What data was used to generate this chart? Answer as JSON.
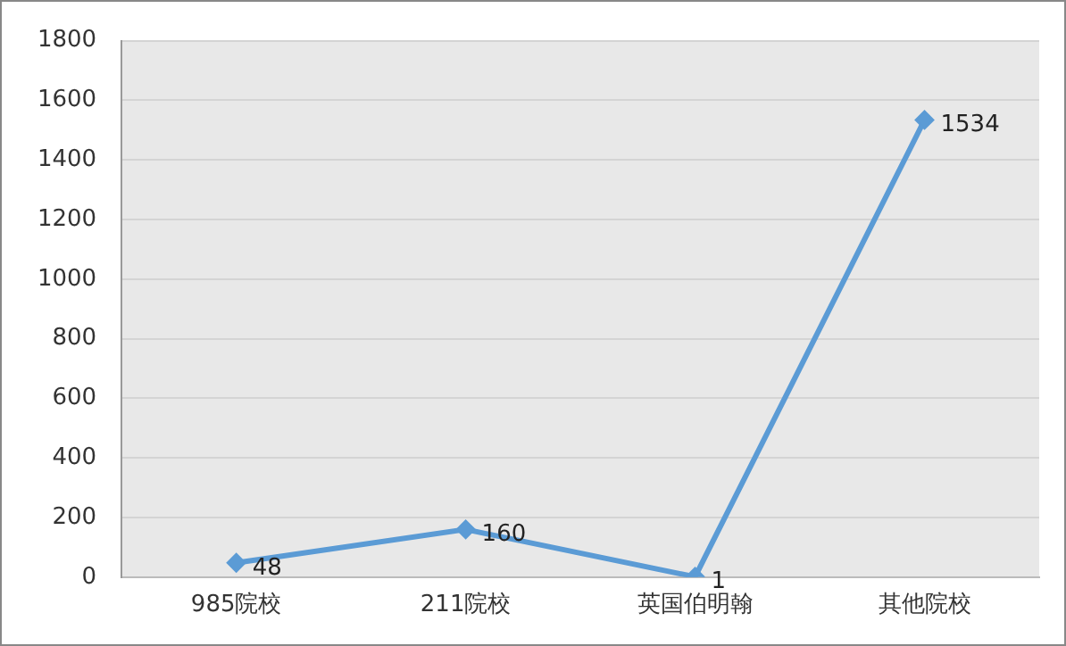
{
  "chart_data": {
    "type": "line",
    "categories": [
      "985院校",
      "211院校",
      "英国伯明翰",
      "其他院校"
    ],
    "series": [
      {
        "color": "#5b9bd5",
        "values": [
          48,
          160,
          1,
          1534
        ]
      }
    ],
    "ylim": [
      0,
      1800
    ],
    "yticks": [
      0,
      200,
      400,
      600,
      800,
      1000,
      1200,
      1400,
      1600,
      1800
    ],
    "grid": "y",
    "legend": false,
    "marker": "diamond",
    "line_style": "solid",
    "data_labels": true
  }
}
